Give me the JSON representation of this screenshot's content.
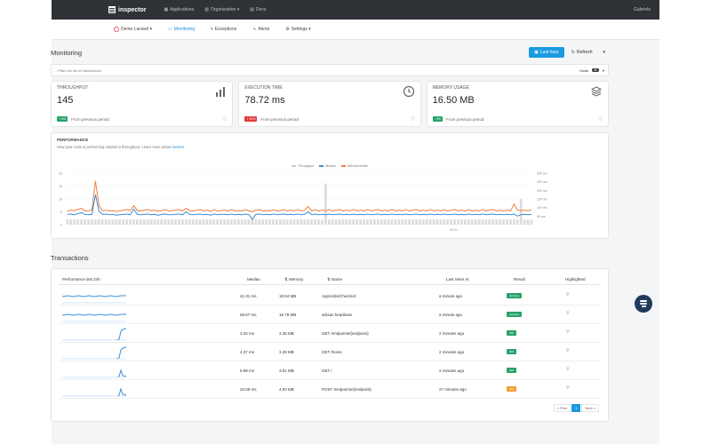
{
  "app": {
    "name": "inspector",
    "user": "Gabriele"
  },
  "topnav": [
    {
      "label": "Applications",
      "icon": "grid-icon"
    },
    {
      "label": "Organization ▾",
      "icon": "building-icon"
    },
    {
      "label": "Docs",
      "icon": "book-icon"
    }
  ],
  "subnav": {
    "project": "Demo Laravel ▾",
    "items": [
      {
        "label": "Monitoring",
        "icon": "monitor-icon",
        "active": true
      },
      {
        "label": "Exceptions",
        "icon": "bolt-icon",
        "active": false
      },
      {
        "label": "Alerts",
        "icon": "alert-icon",
        "active": false
      },
      {
        "label": "Settings ▾",
        "icon": "settings-icon",
        "active": false
      }
    ]
  },
  "page": {
    "title": "Monitoring",
    "range_button": "Last hour",
    "refresh_button": "Refresh",
    "filter_placeholder": "...Filter the list of transactions",
    "hosts_label": "Hosts",
    "hosts_count": "All"
  },
  "cards": [
    {
      "label": "THROUGHPUT",
      "value": "145",
      "delta": "+ 6%",
      "delta_color": "green",
      "foot": "From previous period",
      "icon": "bar-chart-icon"
    },
    {
      "label": "EXECUTION TIME",
      "value": "78.72 ms",
      "delta": "+ 10%",
      "delta_color": "red",
      "foot": "From previous period",
      "icon": "clock-icon"
    },
    {
      "label": "MEMORY USAGE",
      "value": "16.50 MB",
      "delta": "- 2%",
      "delta_color": "green",
      "foot": "From previous period",
      "icon": "layers-icon"
    }
  ],
  "performance": {
    "title": "PERFORMANCE",
    "subtitle": "How your code is performing related to throughput. Learn more about",
    "link": "metrics."
  },
  "chart_data": {
    "type": "line",
    "legend": [
      "Throughput",
      "Median",
      "95th percentile"
    ],
    "yleft_ticks": [
      "20",
      "15",
      "10",
      "5",
      "0"
    ],
    "yright_ticks": [
      "300 ms",
      "250 ms",
      "200 ms",
      "150 ms",
      "100 ms",
      "50 ms"
    ],
    "x_label": "00:21",
    "ylim_left": [
      0,
      20
    ],
    "ylim_right": [
      0,
      300
    ],
    "throughput": [
      2,
      2,
      2,
      2,
      2,
      2,
      2,
      2,
      2,
      2,
      2,
      2,
      2,
      2,
      2,
      2,
      2,
      2,
      2,
      2,
      2,
      2,
      2,
      2,
      2,
      2,
      2,
      2,
      2,
      2,
      2,
      2,
      2,
      2,
      2,
      2,
      2,
      2,
      2,
      2,
      2,
      2,
      2,
      2,
      2,
      2,
      2,
      2,
      2,
      2,
      2,
      2,
      2,
      2,
      2,
      2,
      2,
      2,
      2,
      2,
      2,
      2,
      2,
      2,
      2,
      2,
      2,
      2,
      2,
      2,
      2,
      2,
      2,
      2,
      16,
      2,
      2,
      2,
      2,
      2,
      2,
      2,
      2,
      2,
      2,
      2,
      2,
      2,
      2,
      2,
      2,
      2,
      2,
      2,
      2,
      2,
      2,
      2,
      2,
      2,
      2,
      2,
      2,
      2,
      2,
      2,
      2,
      2,
      2,
      2,
      2,
      2,
      2,
      2,
      2,
      2,
      2,
      2,
      2,
      2,
      2,
      2,
      2,
      2,
      2,
      2,
      2,
      2,
      2,
      2,
      10,
      2,
      2,
      2
    ],
    "median": [
      60,
      62,
      58,
      65,
      70,
      60,
      58,
      60,
      175,
      80,
      60,
      62,
      58,
      60,
      55,
      58,
      60,
      62,
      58,
      90,
      60,
      58,
      60,
      62,
      58,
      60,
      55,
      60,
      62,
      58,
      58,
      60,
      62,
      58,
      75,
      60,
      58,
      60,
      62,
      58,
      60,
      55,
      62,
      58,
      60,
      60,
      58,
      62,
      58,
      60,
      58,
      62,
      58,
      30,
      60,
      62,
      58,
      60,
      58,
      62,
      58,
      60,
      62,
      58,
      60,
      58,
      62,
      58,
      60,
      75,
      58,
      62,
      58,
      60,
      58,
      62,
      58,
      60,
      62,
      58,
      60,
      58,
      62,
      58,
      60,
      58,
      62,
      58,
      60,
      62,
      58,
      60,
      58,
      62,
      58,
      60,
      58,
      62,
      58,
      60,
      62,
      58,
      60,
      58,
      62,
      58,
      60,
      58,
      62,
      58,
      60,
      62,
      58,
      60,
      58,
      62,
      58,
      60,
      58,
      62,
      58,
      60,
      62,
      58,
      60,
      58,
      60,
      58,
      62,
      50,
      58,
      60,
      58,
      60
    ],
    "p95": [
      80,
      85,
      82,
      88,
      95,
      80,
      82,
      85,
      255,
      110,
      82,
      85,
      80,
      82,
      78,
      80,
      85,
      88,
      82,
      110,
      82,
      80,
      85,
      88,
      82,
      85,
      78,
      82,
      88,
      80,
      82,
      85,
      88,
      80,
      95,
      82,
      80,
      85,
      88,
      80,
      85,
      78,
      88,
      80,
      82,
      85,
      80,
      88,
      80,
      82,
      80,
      88,
      80,
      75,
      85,
      88,
      80,
      82,
      80,
      88,
      80,
      82,
      88,
      80,
      85,
      80,
      88,
      80,
      85,
      105,
      80,
      88,
      80,
      85,
      80,
      88,
      80,
      85,
      88,
      80,
      85,
      80,
      88,
      80,
      85,
      80,
      88,
      80,
      85,
      88,
      80,
      85,
      80,
      88,
      80,
      85,
      80,
      88,
      80,
      85,
      88,
      80,
      85,
      80,
      88,
      80,
      85,
      80,
      88,
      80,
      85,
      88,
      80,
      85,
      80,
      88,
      80,
      85,
      80,
      88,
      80,
      85,
      88,
      80,
      85,
      80,
      85,
      80,
      120,
      85,
      82,
      85,
      82,
      85
    ]
  },
  "transactions": {
    "title": "Transactions",
    "columns": [
      "Performance last 24h",
      "Median",
      "Memory",
      "Name",
      "Last Seen At",
      "Result",
      "Highlighted"
    ],
    "rows": [
      {
        "median": "41.31 ms",
        "memory": "18.94 MB",
        "name": "App\\Jobs\\CheckUrl",
        "last_seen": "a minute ago",
        "result": "success",
        "result_color": "#26a269",
        "spark": "flat"
      },
      {
        "median": "59.57 ms",
        "memory": "16.79 MB",
        "name": "artisan heartbeat",
        "last_seen": "a minute ago",
        "result": "success",
        "result_color": "#26a269",
        "spark": "flat"
      },
      {
        "median": "3.34 ms",
        "memory": "3.36 MB",
        "name": "GET /endpoints/{endpoint}",
        "last_seen": "2 minutes ago",
        "result": "200",
        "result_color": "#26a269",
        "spark": "rise"
      },
      {
        "median": "4.37 ms",
        "memory": "3.39 MB",
        "name": "GET /home",
        "last_seen": "2 minutes ago",
        "result": "200",
        "result_color": "#26a269",
        "spark": "rise"
      },
      {
        "median": "6.99 ms",
        "memory": "3.51 MB",
        "name": "GET /",
        "last_seen": "2 minutes ago",
        "result": "200",
        "result_color": "#26a269",
        "spark": "spike"
      },
      {
        "median": "20.59 ms",
        "memory": "4.00 MB",
        "name": "POST /endpoints/{endpoint}",
        "last_seen": "27 minutes ago",
        "result": "302",
        "result_color": "#f0a030",
        "spark": "spike"
      }
    ],
    "pager": {
      "prev": "« Prev",
      "current": "1",
      "next": "Next »"
    }
  }
}
